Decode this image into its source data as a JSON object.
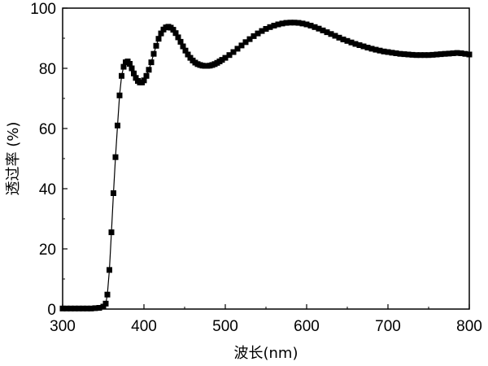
{
  "chart_data": {
    "type": "line",
    "title": "",
    "xlabel": "波长(nm)",
    "ylabel": "透过率 (%)",
    "xlim": [
      300,
      800
    ],
    "ylim": [
      0,
      100
    ],
    "xticks": [
      300,
      400,
      500,
      600,
      700,
      800
    ],
    "yticks": [
      0,
      20,
      40,
      60,
      80,
      100
    ],
    "grid": false,
    "marker": "square",
    "series": [
      {
        "color": "#000000",
        "points": [
          [
            300,
            0.2
          ],
          [
            305,
            0.2
          ],
          [
            310,
            0.2
          ],
          [
            315,
            0.2
          ],
          [
            320,
            0.2
          ],
          [
            325,
            0.2
          ],
          [
            330,
            0.2
          ],
          [
            335,
            0.2
          ],
          [
            340,
            0.3
          ],
          [
            345,
            0.4
          ],
          [
            350,
            0.8
          ],
          [
            353,
            1.8
          ],
          [
            355,
            4.8
          ],
          [
            357.5,
            13.0
          ],
          [
            360,
            25.5
          ],
          [
            362.5,
            38.5
          ],
          [
            365,
            50.5
          ],
          [
            367.5,
            61.0
          ],
          [
            370,
            71.0
          ],
          [
            372.5,
            77.5
          ],
          [
            375,
            80.5
          ],
          [
            377.5,
            82.0
          ],
          [
            380,
            82.3
          ],
          [
            382.5,
            81.5
          ],
          [
            385,
            80.0
          ],
          [
            387.5,
            78.3
          ],
          [
            390,
            76.8
          ],
          [
            392.5,
            75.8
          ],
          [
            395,
            75.3
          ],
          [
            397.5,
            75.3
          ],
          [
            400,
            76.0
          ],
          [
            403,
            77.5
          ],
          [
            406,
            79.5
          ],
          [
            409,
            82.0
          ],
          [
            412,
            84.8
          ],
          [
            415,
            87.5
          ],
          [
            418,
            89.8
          ],
          [
            421,
            91.6
          ],
          [
            424,
            92.9
          ],
          [
            427,
            93.6
          ],
          [
            430,
            93.8
          ],
          [
            433,
            93.5
          ],
          [
            436,
            92.8
          ],
          [
            439,
            91.7
          ],
          [
            442,
            90.3
          ],
          [
            445,
            88.8
          ],
          [
            448,
            87.3
          ],
          [
            451,
            85.9
          ],
          [
            454,
            84.6
          ],
          [
            457,
            83.5
          ],
          [
            460,
            82.6
          ],
          [
            463,
            81.9
          ],
          [
            466,
            81.4
          ],
          [
            469,
            81.1
          ],
          [
            472,
            80.9
          ],
          [
            475,
            80.8
          ],
          [
            478,
            80.8
          ],
          [
            481,
            80.9
          ],
          [
            484,
            81.1
          ],
          [
            487,
            81.4
          ],
          [
            490,
            81.8
          ],
          [
            493,
            82.3
          ],
          [
            496,
            82.8
          ],
          [
            500,
            83.5
          ],
          [
            505,
            84.4
          ],
          [
            510,
            85.4
          ],
          [
            515,
            86.5
          ],
          [
            520,
            87.6
          ],
          [
            525,
            88.7
          ],
          [
            530,
            89.7
          ],
          [
            535,
            90.7
          ],
          [
            540,
            91.6
          ],
          [
            545,
            92.4
          ],
          [
            550,
            93.1
          ],
          [
            555,
            93.7
          ],
          [
            560,
            94.2
          ],
          [
            565,
            94.6
          ],
          [
            570,
            94.9
          ],
          [
            575,
            95.1
          ],
          [
            580,
            95.2
          ],
          [
            585,
            95.2
          ],
          [
            590,
            95.1
          ],
          [
            595,
            94.9
          ],
          [
            600,
            94.6
          ],
          [
            605,
            94.2
          ],
          [
            610,
            93.7
          ],
          [
            615,
            93.2
          ],
          [
            620,
            92.6
          ],
          [
            625,
            92.0
          ],
          [
            630,
            91.4
          ],
          [
            635,
            90.8
          ],
          [
            640,
            90.2
          ],
          [
            645,
            89.6
          ],
          [
            650,
            89.1
          ],
          [
            655,
            88.6
          ],
          [
            660,
            88.1
          ],
          [
            665,
            87.7
          ],
          [
            670,
            87.3
          ],
          [
            675,
            86.9
          ],
          [
            680,
            86.5
          ],
          [
            685,
            86.2
          ],
          [
            690,
            85.9
          ],
          [
            695,
            85.6
          ],
          [
            700,
            85.4
          ],
          [
            705,
            85.2
          ],
          [
            710,
            85.0
          ],
          [
            715,
            84.8
          ],
          [
            720,
            84.7
          ],
          [
            725,
            84.6
          ],
          [
            730,
            84.5
          ],
          [
            735,
            84.4
          ],
          [
            740,
            84.4
          ],
          [
            745,
            84.4
          ],
          [
            750,
            84.4
          ],
          [
            755,
            84.5
          ],
          [
            760,
            84.6
          ],
          [
            765,
            84.7
          ],
          [
            770,
            84.8
          ],
          [
            775,
            84.9
          ],
          [
            780,
            85.0
          ],
          [
            785,
            85.1
          ],
          [
            790,
            85.0
          ],
          [
            795,
            84.8
          ],
          [
            800,
            84.6
          ]
        ]
      }
    ]
  }
}
